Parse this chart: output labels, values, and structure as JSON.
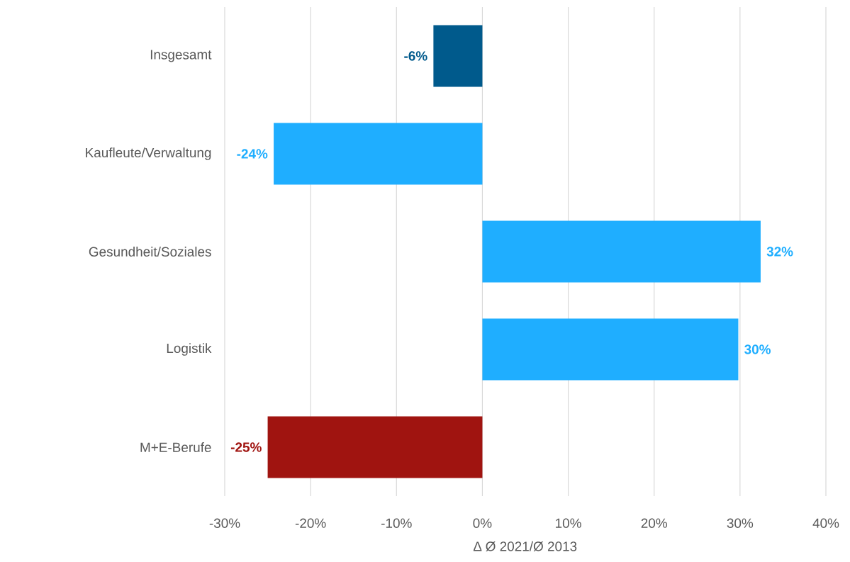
{
  "chart_data": {
    "type": "bar",
    "orientation": "horizontal",
    "categories": [
      "Insgesamt",
      "Kaufleute/Verwaltung",
      "Gesundheit/Soziales",
      "Logistik",
      "M+E-Berufe"
    ],
    "values": [
      -5.7,
      -24.3,
      32.4,
      29.8,
      -25.0
    ],
    "colors": [
      "#005a8c",
      "#1faeff",
      "#1faeff",
      "#1faeff",
      "#a01410"
    ],
    "value_labels": [
      "-6%",
      "-24%",
      "32%",
      "30%",
      "-25%"
    ],
    "xlabel": "∆ Ø 2021/Ø 2013",
    "xlim": [
      -30,
      40
    ],
    "xticks": [
      {
        "value": -30,
        "label": "-30%"
      },
      {
        "value": -20,
        "label": "-20%"
      },
      {
        "value": -10,
        "label": "-10%"
      },
      {
        "value": 0,
        "label": "0%"
      },
      {
        "value": 10,
        "label": "10%"
      },
      {
        "value": 20,
        "label": "20%"
      },
      {
        "value": 30,
        "label": "30%"
      },
      {
        "value": 40,
        "label": "40%"
      }
    ],
    "grid": "x"
  }
}
